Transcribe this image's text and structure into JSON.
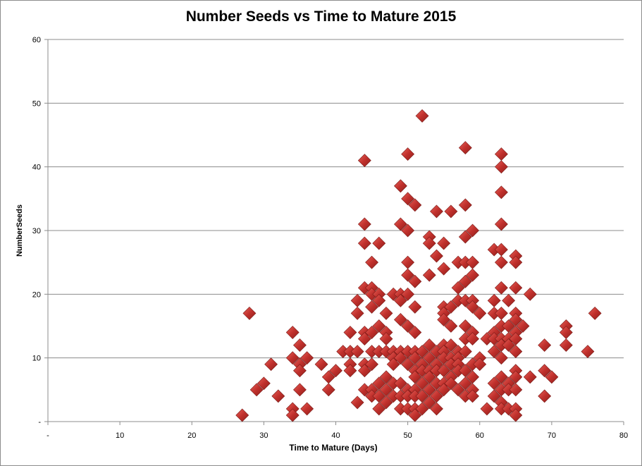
{
  "chart_data": {
    "type": "scatter",
    "title": "Number Seeds vs Time to Mature 2015",
    "xlabel": "Time to Mature (Days)",
    "ylabel": "NumberSeeds",
    "xlim": [
      0,
      80
    ],
    "ylim": [
      0,
      60
    ],
    "x_ticks": [
      "-",
      "10",
      "20",
      "30",
      "40",
      "50",
      "60",
      "70",
      "80"
    ],
    "y_ticks": [
      "-",
      "10",
      "20",
      "30",
      "40",
      "50",
      "60"
    ],
    "grid": "horizontal",
    "legend": "none",
    "marker": "diamond",
    "colors": {
      "marker": "#c0302c",
      "grid": "#8c8c8c",
      "axis": "#8c8c8c"
    },
    "series": [
      {
        "points": [
          [
            27,
            1
          ],
          [
            28,
            17
          ],
          [
            29,
            5
          ],
          [
            30,
            6
          ],
          [
            31,
            9
          ],
          [
            32,
            4
          ],
          [
            34,
            14
          ],
          [
            34,
            10
          ],
          [
            34,
            2
          ],
          [
            34,
            1
          ],
          [
            35,
            12
          ],
          [
            35,
            9
          ],
          [
            35,
            8
          ],
          [
            35,
            5
          ],
          [
            36,
            10
          ],
          [
            36,
            2
          ],
          [
            38,
            9
          ],
          [
            39,
            7
          ],
          [
            39,
            5
          ],
          [
            40,
            8
          ],
          [
            41,
            11
          ],
          [
            42,
            11
          ],
          [
            42,
            9
          ],
          [
            42,
            8
          ],
          [
            42,
            14
          ],
          [
            43,
            11
          ],
          [
            43,
            19
          ],
          [
            43,
            17
          ],
          [
            43,
            3
          ],
          [
            44,
            41
          ],
          [
            44,
            31
          ],
          [
            44,
            28
          ],
          [
            44,
            21
          ],
          [
            44,
            14
          ],
          [
            44,
            13
          ],
          [
            44,
            9
          ],
          [
            44,
            8
          ],
          [
            44,
            5
          ],
          [
            45,
            25
          ],
          [
            45,
            21
          ],
          [
            45,
            20
          ],
          [
            45,
            18
          ],
          [
            45,
            14
          ],
          [
            45,
            11
          ],
          [
            45,
            9
          ],
          [
            45,
            5
          ],
          [
            45,
            4
          ],
          [
            46,
            28
          ],
          [
            46,
            20
          ],
          [
            46,
            19
          ],
          [
            46,
            15
          ],
          [
            46,
            11
          ],
          [
            46,
            6
          ],
          [
            46,
            4
          ],
          [
            46,
            2
          ],
          [
            47,
            17
          ],
          [
            47,
            14
          ],
          [
            47,
            13
          ],
          [
            47,
            11
          ],
          [
            47,
            7
          ],
          [
            47,
            5
          ],
          [
            47,
            3
          ],
          [
            48,
            20
          ],
          [
            48,
            11
          ],
          [
            48,
            10
          ],
          [
            48,
            9
          ],
          [
            48,
            6
          ],
          [
            48,
            4
          ],
          [
            49,
            37
          ],
          [
            49,
            31
          ],
          [
            49,
            20
          ],
          [
            49,
            19
          ],
          [
            49,
            16
          ],
          [
            49,
            11
          ],
          [
            49,
            10
          ],
          [
            49,
            6
          ],
          [
            49,
            4
          ],
          [
            49,
            2
          ],
          [
            50,
            42
          ],
          [
            50,
            35
          ],
          [
            50,
            30
          ],
          [
            50,
            25
          ],
          [
            50,
            23
          ],
          [
            50,
            20
          ],
          [
            50,
            15
          ],
          [
            50,
            11
          ],
          [
            50,
            9
          ],
          [
            50,
            5
          ],
          [
            50,
            4
          ],
          [
            50,
            2
          ],
          [
            51,
            34
          ],
          [
            51,
            22
          ],
          [
            51,
            18
          ],
          [
            51,
            14
          ],
          [
            51,
            11
          ],
          [
            51,
            10
          ],
          [
            51,
            8
          ],
          [
            51,
            7
          ],
          [
            51,
            5
          ],
          [
            51,
            4
          ],
          [
            51,
            2
          ],
          [
            51,
            1
          ],
          [
            52,
            48
          ],
          [
            52,
            11
          ],
          [
            52,
            9
          ],
          [
            52,
            8
          ],
          [
            52,
            6
          ],
          [
            52,
            4
          ],
          [
            52,
            2
          ],
          [
            53,
            29
          ],
          [
            53,
            28
          ],
          [
            53,
            23
          ],
          [
            53,
            12
          ],
          [
            53,
            10
          ],
          [
            53,
            8
          ],
          [
            53,
            7
          ],
          [
            53,
            5
          ],
          [
            53,
            3
          ],
          [
            54,
            33
          ],
          [
            54,
            26
          ],
          [
            54,
            11
          ],
          [
            54,
            9
          ],
          [
            54,
            8
          ],
          [
            54,
            6
          ],
          [
            54,
            4
          ],
          [
            54,
            2
          ],
          [
            55,
            28
          ],
          [
            55,
            24
          ],
          [
            55,
            18
          ],
          [
            55,
            17
          ],
          [
            55,
            16
          ],
          [
            55,
            12
          ],
          [
            55,
            11
          ],
          [
            55,
            10
          ],
          [
            55,
            8
          ],
          [
            55,
            6
          ],
          [
            55,
            5
          ],
          [
            56,
            33
          ],
          [
            56,
            18
          ],
          [
            56,
            15
          ],
          [
            56,
            12
          ],
          [
            56,
            10
          ],
          [
            56,
            9
          ],
          [
            56,
            7
          ],
          [
            56,
            6
          ],
          [
            57,
            25
          ],
          [
            57,
            21
          ],
          [
            57,
            19
          ],
          [
            57,
            11
          ],
          [
            57,
            10
          ],
          [
            57,
            9
          ],
          [
            57,
            8
          ],
          [
            57,
            5
          ],
          [
            58,
            43
          ],
          [
            58,
            34
          ],
          [
            58,
            29
          ],
          [
            58,
            25
          ],
          [
            58,
            22
          ],
          [
            58,
            19
          ],
          [
            58,
            15
          ],
          [
            58,
            13
          ],
          [
            58,
            11
          ],
          [
            58,
            8
          ],
          [
            58,
            6
          ],
          [
            58,
            4
          ],
          [
            59,
            30
          ],
          [
            59,
            25
          ],
          [
            59,
            23
          ],
          [
            59,
            19
          ],
          [
            59,
            18
          ],
          [
            59,
            14
          ],
          [
            59,
            13
          ],
          [
            59,
            9
          ],
          [
            59,
            7
          ],
          [
            59,
            5
          ],
          [
            59,
            4
          ],
          [
            60,
            17
          ],
          [
            60,
            10
          ],
          [
            60,
            9
          ],
          [
            61,
            13
          ],
          [
            61,
            2
          ],
          [
            62,
            27
          ],
          [
            62,
            19
          ],
          [
            62,
            17
          ],
          [
            62,
            14
          ],
          [
            62,
            13
          ],
          [
            62,
            11
          ],
          [
            62,
            6
          ],
          [
            62,
            4
          ],
          [
            63,
            42
          ],
          [
            63,
            40
          ],
          [
            63,
            36
          ],
          [
            63,
            31
          ],
          [
            63,
            27
          ],
          [
            63,
            25
          ],
          [
            63,
            21
          ],
          [
            63,
            17
          ],
          [
            63,
            15
          ],
          [
            63,
            13
          ],
          [
            63,
            12
          ],
          [
            63,
            10
          ],
          [
            63,
            7
          ],
          [
            63,
            5
          ],
          [
            63,
            3
          ],
          [
            63,
            2
          ],
          [
            64,
            19
          ],
          [
            64,
            15
          ],
          [
            64,
            13
          ],
          [
            64,
            12
          ],
          [
            64,
            6
          ],
          [
            64,
            5
          ],
          [
            64,
            2
          ],
          [
            65,
            26
          ],
          [
            65,
            25
          ],
          [
            65,
            21
          ],
          [
            65,
            17
          ],
          [
            65,
            16
          ],
          [
            65,
            14
          ],
          [
            65,
            13
          ],
          [
            65,
            11
          ],
          [
            65,
            8
          ],
          [
            65,
            7
          ],
          [
            65,
            5
          ],
          [
            65,
            2
          ],
          [
            65,
            1
          ],
          [
            66,
            15
          ],
          [
            67,
            20
          ],
          [
            67,
            7
          ],
          [
            69,
            12
          ],
          [
            69,
            8
          ],
          [
            69,
            4
          ],
          [
            70,
            7
          ],
          [
            72,
            15
          ],
          [
            72,
            14
          ],
          [
            72,
            12
          ],
          [
            75,
            11
          ],
          [
            76,
            17
          ]
        ]
      }
    ]
  }
}
